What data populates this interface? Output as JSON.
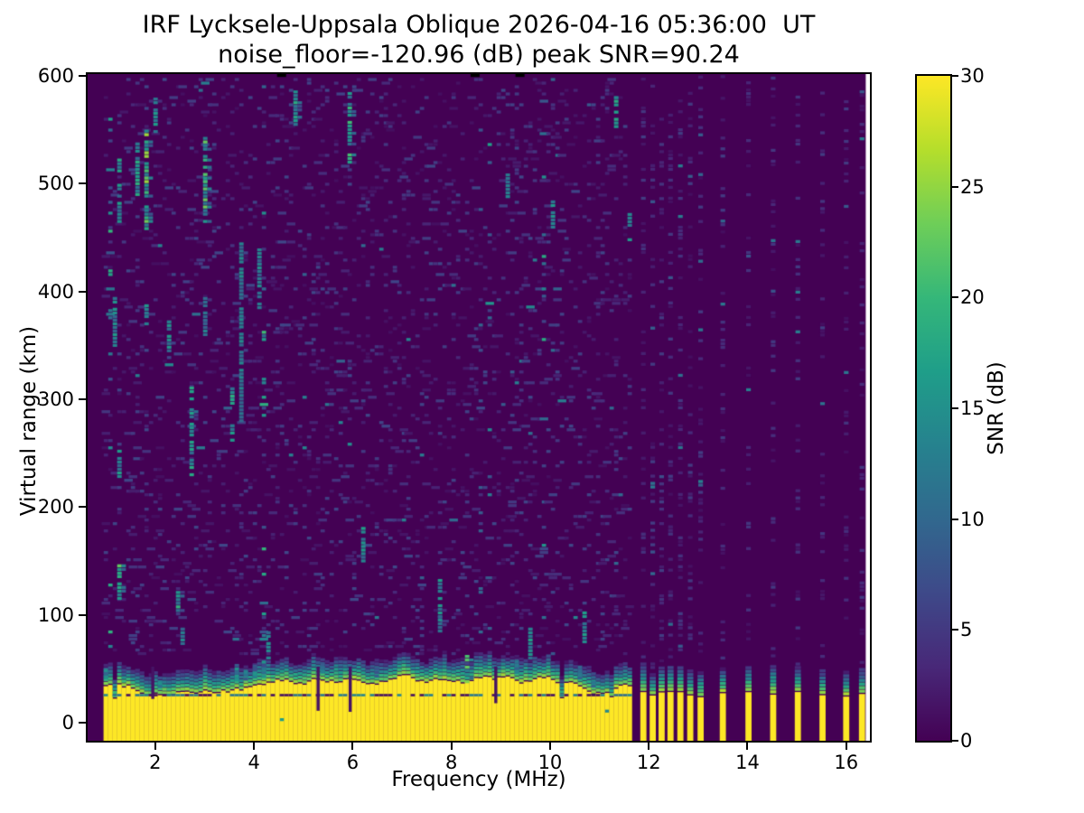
{
  "title": {
    "line1": "IRF Lycksele-Uppsala Oblique 2026-04-16 05:36:00  UT",
    "line2": "noise_floor=-120.96 (dB) peak SNR=90.24"
  },
  "axes": {
    "xlabel": "Frequency (MHz)",
    "ylabel": "Virtual range (km)",
    "xticks": [
      2,
      4,
      6,
      8,
      10,
      12,
      14,
      16
    ],
    "yticks": [
      0,
      100,
      200,
      300,
      400,
      500,
      600
    ]
  },
  "colorbar": {
    "label": "SNR (dB)",
    "ticks": [
      0,
      5,
      10,
      15,
      20,
      25,
      30
    ],
    "vmin": 0,
    "vmax": 30,
    "colormap": "viridis",
    "stops": [
      "#440154",
      "#482878",
      "#3e4989",
      "#31688e",
      "#26828e",
      "#1f9e89",
      "#35b779",
      "#6ece58",
      "#b5de2b",
      "#fde725"
    ]
  },
  "chart_data": {
    "type": "heatmap",
    "title": "IRF Lycksele-Uppsala Oblique 2026-04-16 05:36:00  UT",
    "subtitle": "noise_floor=-120.96 (dB) peak SNR=90.24",
    "station": "IRF Lycksele-Uppsala Oblique",
    "timestamp_ut": "2026-04-16 05:36:00",
    "noise_floor_db": -120.96,
    "peak_snr_db": 90.24,
    "xlabel": "Frequency (MHz)",
    "ylabel": "Virtual range (km)",
    "xlim": [
      0.63,
      16.48
    ],
    "ylim": [
      -16.8,
      601.7
    ],
    "snr_range_db": [
      0,
      30
    ],
    "data_edge_mhz": 16.35,
    "echo_band": {
      "freq_start_mhz": 1.0,
      "freq_end_mhz": 11.66,
      "top_km_mean": 33,
      "top_km_min": 25,
      "top_km_max": 44,
      "fringe_extent_km": 25,
      "dark_line_km": 25.5
    },
    "sparse_tones_mhz": [
      11.89,
      12.08,
      12.26,
      12.44,
      12.64,
      12.84,
      13.05,
      13.5,
      14.02,
      14.52,
      15.02,
      15.52,
      16.0,
      16.32
    ],
    "band_notches": [
      {
        "f": 1.95,
        "down_to_km": 22
      },
      {
        "f": 5.3,
        "down_to_km": 11
      },
      {
        "f": 5.95,
        "down_to_km": 10
      },
      {
        "f": 8.9,
        "down_to_km": 18
      }
    ],
    "rfi_streaks": [
      {
        "f": 1.28,
        "km": [
          112,
          148
        ],
        "s": 0.8
      },
      {
        "f": 1.3,
        "km": [
          225,
          255
        ],
        "s": 0.5
      },
      {
        "f": 1.25,
        "km": [
          465,
          525
        ],
        "s": 0.6
      },
      {
        "f": 1.15,
        "km": [
          350,
          395
        ],
        "s": 0.5
      },
      {
        "f": 1.78,
        "km": [
          455,
          550
        ],
        "s": 1.0
      },
      {
        "f": 1.6,
        "km": [
          490,
          540
        ],
        "s": 0.6
      },
      {
        "f": 1.8,
        "km": [
          370,
          390
        ],
        "s": 0.5
      },
      {
        "f": 2.0,
        "km": [
          545,
          580
        ],
        "s": 0.5
      },
      {
        "f": 2.42,
        "km": [
          104,
          122
        ],
        "s": 0.7
      },
      {
        "f": 2.3,
        "km": [
          345,
          372
        ],
        "s": 0.5
      },
      {
        "f": 2.6,
        "km": [
          60,
          90
        ],
        "s": 0.4
      },
      {
        "f": 2.72,
        "km": [
          230,
          312
        ],
        "s": 0.6
      },
      {
        "f": 2.98,
        "km": [
          465,
          545
        ],
        "s": 0.8
      },
      {
        "f": 3.0,
        "km": [
          360,
          395
        ],
        "s": 0.4
      },
      {
        "f": 3.53,
        "km": [
          252,
          278
        ],
        "s": 0.5
      },
      {
        "f": 3.6,
        "km": [
          293,
          312
        ],
        "s": 0.6
      },
      {
        "f": 3.7,
        "km": [
          280,
          445
        ],
        "s": 0.4
      },
      {
        "f": 4.1,
        "km": [
          385,
          440
        ],
        "s": 0.4
      },
      {
        "f": 4.3,
        "km": [
          60,
          85
        ],
        "s": 0.4
      },
      {
        "f": 4.82,
        "km": [
          555,
          588
        ],
        "s": 0.7
      },
      {
        "f": 5.9,
        "km": [
          520,
          585
        ],
        "s": 0.7
      },
      {
        "f": 6.2,
        "km": [
          150,
          183
        ],
        "s": 0.5
      },
      {
        "f": 7.75,
        "km": [
          85,
          135
        ],
        "s": 0.5
      },
      {
        "f": 8.3,
        "km": [
          38,
          62
        ],
        "s": 0.9
      },
      {
        "f": 9.1,
        "km": [
          488,
          510
        ],
        "s": 0.45
      },
      {
        "f": 9.6,
        "km": [
          60,
          88
        ],
        "s": 0.5
      },
      {
        "f": 10.05,
        "km": [
          453,
          487
        ],
        "s": 0.5
      },
      {
        "f": 10.66,
        "km": [
          75,
          102
        ],
        "s": 0.5
      },
      {
        "f": 11.3,
        "km": [
          553,
          585
        ],
        "s": 0.6
      },
      {
        "f": 11.62,
        "km": [
          448,
          472
        ],
        "s": 0.5
      }
    ],
    "spine_marks_mhz": [
      4.56,
      8.48,
      9.39
    ],
    "noise": {
      "seed": 42,
      "col_step_mhz": 0.0915,
      "row_km": 3.35,
      "density": 0.22,
      "tone_density_low": 0.5,
      "tone_density_high": 0.42,
      "noise_top_km": 600,
      "noise_bottom_km": 64
    }
  }
}
